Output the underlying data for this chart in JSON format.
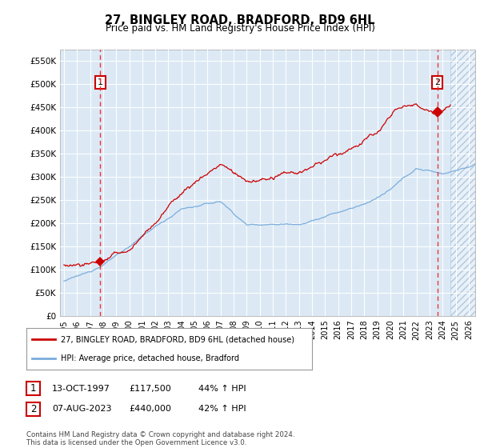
{
  "title": "27, BINGLEY ROAD, BRADFORD, BD9 6HL",
  "subtitle": "Price paid vs. HM Land Registry's House Price Index (HPI)",
  "ylabel_ticks": [
    "£0",
    "£50K",
    "£100K",
    "£150K",
    "£200K",
    "£250K",
    "£300K",
    "£350K",
    "£400K",
    "£450K",
    "£500K",
    "£550K"
  ],
  "ytick_values": [
    0,
    50000,
    100000,
    150000,
    200000,
    250000,
    300000,
    350000,
    400000,
    450000,
    500000,
    550000
  ],
  "xlim": [
    1994.7,
    2026.5
  ],
  "ylim": [
    0,
    575000
  ],
  "xticks": [
    1995,
    1996,
    1997,
    1998,
    1999,
    2000,
    2001,
    2002,
    2003,
    2004,
    2005,
    2006,
    2007,
    2008,
    2009,
    2010,
    2011,
    2012,
    2013,
    2014,
    2015,
    2016,
    2017,
    2018,
    2019,
    2020,
    2021,
    2022,
    2023,
    2024,
    2025,
    2026
  ],
  "bg_color": "#dce9f5",
  "hatch_region_start": 2024.58,
  "marker1_x": 1997.78,
  "marker1_y": 117500,
  "marker2_x": 2023.6,
  "marker2_y": 440000,
  "vline1_x": 1997.78,
  "vline2_x": 2023.6,
  "legend_line1": "27, BINGLEY ROAD, BRADFORD, BD9 6HL (detached house)",
  "legend_line2": "HPI: Average price, detached house, Bradford",
  "ann1_label": "1",
  "ann2_label": "2",
  "ann1_date": "13-OCT-1997",
  "ann1_price": "£117,500",
  "ann1_hpi": "44% ↑ HPI",
  "ann2_date": "07-AUG-2023",
  "ann2_price": "£440,000",
  "ann2_hpi": "42% ↑ HPI",
  "footer": "Contains HM Land Registry data © Crown copyright and database right 2024.\nThis data is licensed under the Open Government Licence v3.0.",
  "line1_color": "#cc0000",
  "line2_color": "#7aaddc",
  "marker_color": "#cc0000",
  "vline_color": "#ee3333",
  "grid_color": "#ffffff",
  "ann_box_color": "#cc0000"
}
